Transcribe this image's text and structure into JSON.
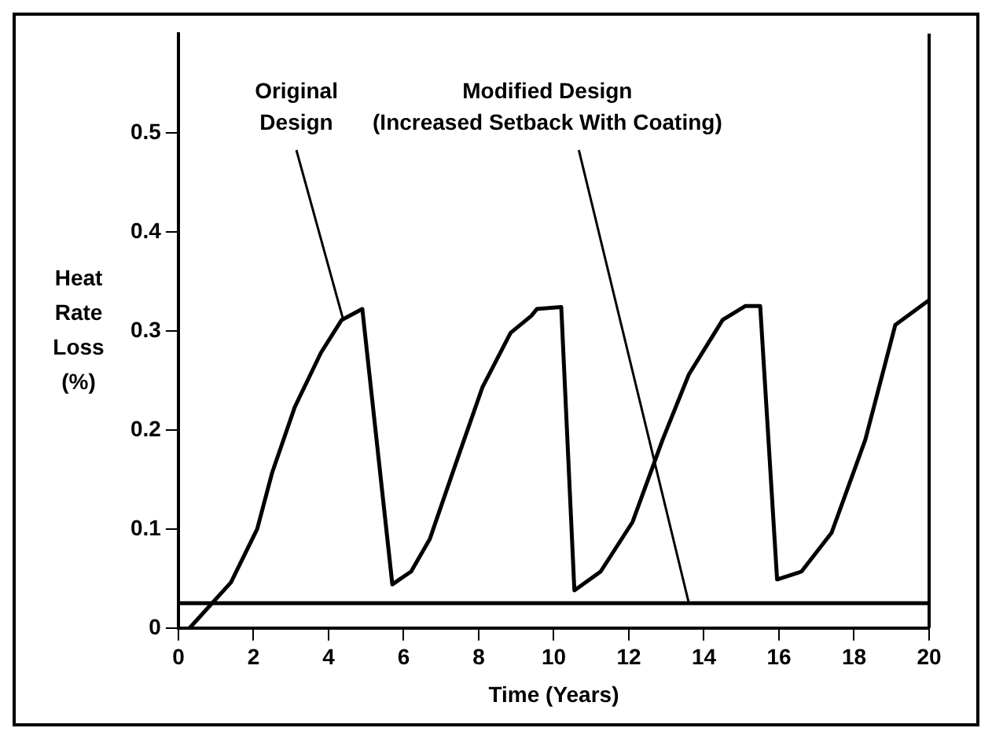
{
  "chart_data": {
    "type": "line",
    "xlabel": "Time (Years)",
    "ylabel": "Heat Rate Loss (%)",
    "xlim": [
      0,
      20
    ],
    "xticks": [
      0,
      2,
      4,
      6,
      8,
      10,
      12,
      14,
      16,
      18,
      20
    ],
    "ylim": [
      0,
      0.6
    ],
    "yticks": [
      0,
      0.1,
      0.2,
      0.3,
      0.4,
      0.5
    ],
    "grid": false,
    "marker": "none",
    "line_style": "solid",
    "series": [
      {
        "color": "#000000",
        "x": [
          0.3,
          1.4,
          2.1,
          2.5,
          3.1,
          3.8,
          4.35,
          4.9,
          5.7,
          6.2,
          6.7,
          7.4,
          8.1,
          8.85,
          9.4,
          9.55,
          10.2,
          10.55,
          11.25,
          12.1,
          12.9,
          13.6,
          14.5,
          15.1,
          15.5,
          15.95,
          16.6,
          17.4,
          18.3,
          19.1,
          20
        ],
        "values": [
          0,
          0.046,
          0.1,
          0.157,
          0.223,
          0.278,
          0.311,
          0.322,
          0.044,
          0.057,
          0.09,
          0.167,
          0.243,
          0.298,
          0.315,
          0.322,
          0.324,
          0.038,
          0.057,
          0.107,
          0.19,
          0.256,
          0.311,
          0.325,
          0.325,
          0.049,
          0.057,
          0.096,
          0.19,
          0.306,
          0.331
        ]
      },
      {
        "color": "#000000",
        "x": [
          0,
          20
        ],
        "values": [
          0.025,
          0.025
        ]
      }
    ],
    "annotations": [
      {
        "text": "Original Design",
        "x": 4.4,
        "y": 0.31
      },
      {
        "text": "Modified Design (Increased Setback With Coating)",
        "x": 13.6,
        "y": 0.025
      }
    ]
  }
}
